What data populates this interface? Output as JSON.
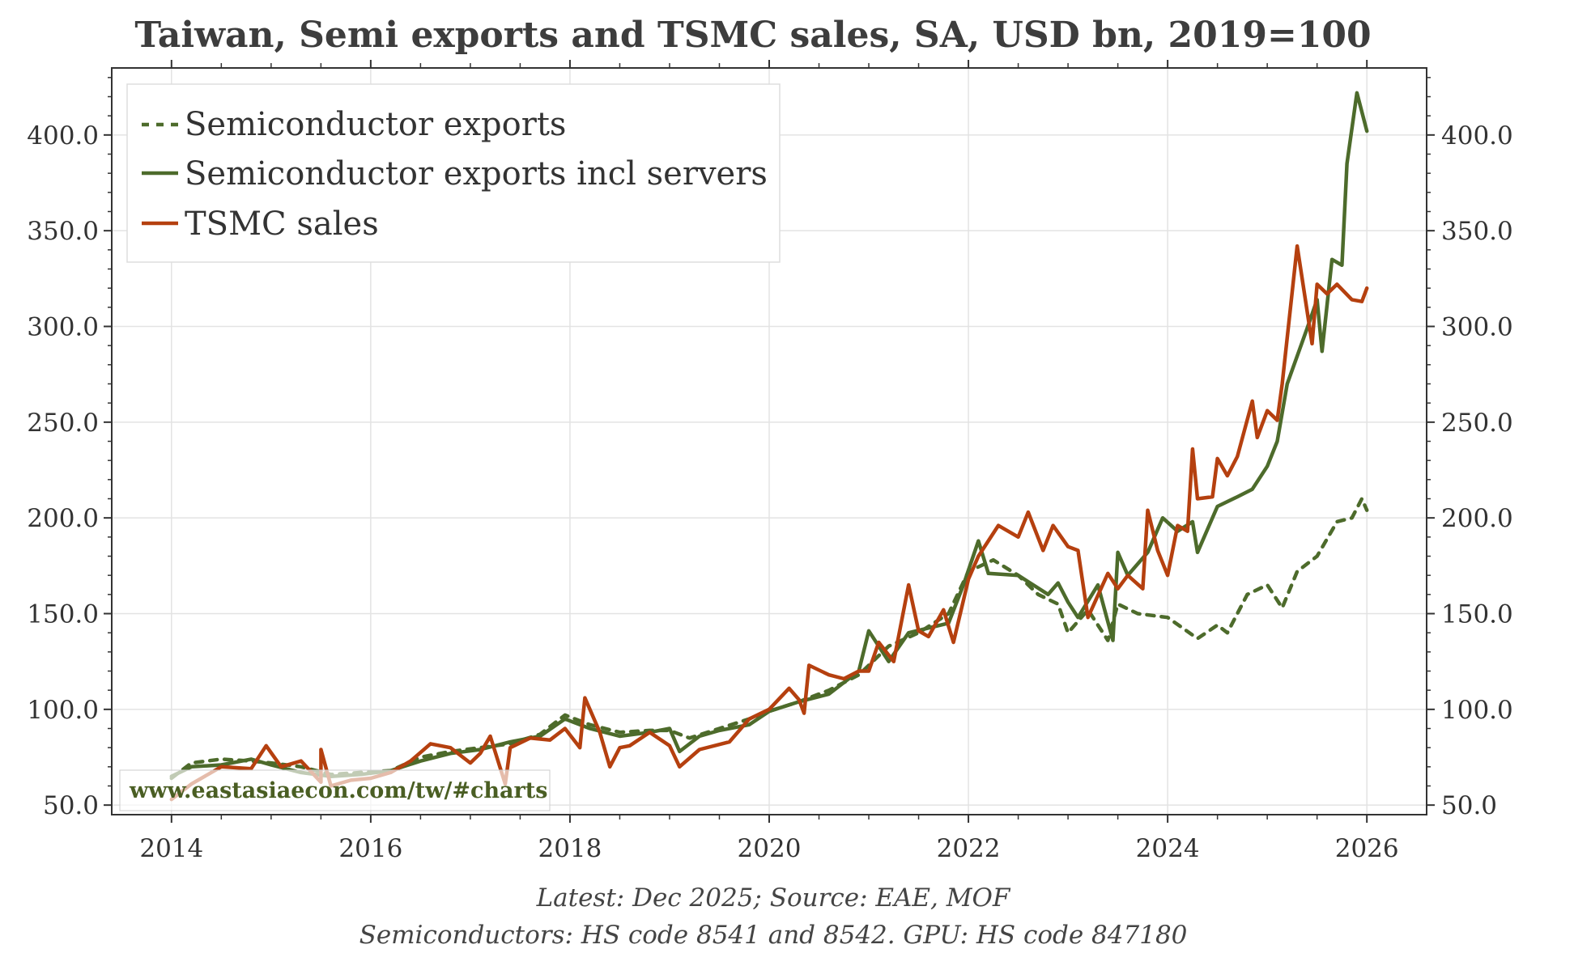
{
  "chart_data": {
    "type": "line",
    "title": "Taiwan, Semi exports and TSMC sales, SA, USD bn, 2019=100",
    "xlabel": "",
    "ylabel": "",
    "xlim": [
      2013.4,
      2026.6
    ],
    "ylim": [
      45,
      435
    ],
    "x_ticks": [
      "2014",
      "2016",
      "2018",
      "2020",
      "2022",
      "2024",
      "2026"
    ],
    "y_ticks": [
      "50.0",
      "100.0",
      "150.0",
      "200.0",
      "250.0",
      "300.0",
      "350.0",
      "400.0"
    ],
    "legend": {
      "position": "top-left",
      "entries": [
        "Semiconductor exports",
        "Semiconductor exports incl servers",
        "TSMC sales"
      ]
    },
    "footnotes": [
      "Latest: Dec 2025; Source: EAE, MOF",
      "Semiconductors: HS code 8541 and 8542. GPU: HS code 847180"
    ],
    "watermark": "www.eastasiaecon.com/tw/#charts",
    "colors": {
      "exports": "#4d6b2b",
      "exports_servers": "#4d6b2b",
      "tsmc": "#b5400f",
      "grid": "#e3e3e3",
      "axis": "#333333"
    },
    "series": [
      {
        "name": "Semiconductor exports",
        "style": "dashed",
        "points": [
          [
            2014.0,
            64
          ],
          [
            2014.2,
            72
          ],
          [
            2014.5,
            74
          ],
          [
            2014.8,
            73
          ],
          [
            2015.0,
            72
          ],
          [
            2015.3,
            70
          ],
          [
            2015.6,
            66
          ],
          [
            2015.9,
            67
          ],
          [
            2016.2,
            68
          ],
          [
            2016.5,
            75
          ],
          [
            2016.8,
            78
          ],
          [
            2017.1,
            80
          ],
          [
            2017.4,
            82
          ],
          [
            2017.7,
            87
          ],
          [
            2017.95,
            97
          ],
          [
            2018.2,
            92
          ],
          [
            2018.5,
            88
          ],
          [
            2018.8,
            89
          ],
          [
            2019.0,
            89
          ],
          [
            2019.2,
            85
          ],
          [
            2019.5,
            90
          ],
          [
            2019.8,
            95
          ],
          [
            2020.0,
            99
          ],
          [
            2020.3,
            104
          ],
          [
            2020.6,
            110
          ],
          [
            2020.9,
            118
          ],
          [
            2021.0,
            123
          ],
          [
            2021.2,
            133
          ],
          [
            2021.5,
            140
          ],
          [
            2021.8,
            150
          ],
          [
            2022.0,
            172
          ],
          [
            2022.25,
            178
          ],
          [
            2022.5,
            170
          ],
          [
            2022.7,
            160
          ],
          [
            2022.9,
            155
          ],
          [
            2023.0,
            140
          ],
          [
            2023.2,
            152
          ],
          [
            2023.4,
            136
          ],
          [
            2023.5,
            155
          ],
          [
            2023.7,
            150
          ],
          [
            2024.0,
            148
          ],
          [
            2024.3,
            137
          ],
          [
            2024.5,
            144
          ],
          [
            2024.6,
            140
          ],
          [
            2024.8,
            160
          ],
          [
            2025.0,
            165
          ],
          [
            2025.15,
            153
          ],
          [
            2025.3,
            172
          ],
          [
            2025.5,
            180
          ],
          [
            2025.7,
            198
          ],
          [
            2025.85,
            200
          ],
          [
            2025.95,
            210
          ],
          [
            2026.0,
            204
          ]
        ]
      },
      {
        "name": "Semiconductor exports incl servers",
        "style": "solid",
        "points": [
          [
            2014.0,
            65
          ],
          [
            2014.2,
            70
          ],
          [
            2014.5,
            71
          ],
          [
            2014.8,
            74
          ],
          [
            2015.0,
            71
          ],
          [
            2015.3,
            67
          ],
          [
            2015.6,
            65
          ],
          [
            2015.9,
            66
          ],
          [
            2016.2,
            68
          ],
          [
            2016.5,
            73
          ],
          [
            2016.8,
            77
          ],
          [
            2017.1,
            79
          ],
          [
            2017.4,
            83
          ],
          [
            2017.7,
            86
          ],
          [
            2017.95,
            95
          ],
          [
            2018.2,
            90
          ],
          [
            2018.5,
            86
          ],
          [
            2018.8,
            88
          ],
          [
            2019.0,
            90
          ],
          [
            2019.1,
            78
          ],
          [
            2019.3,
            86
          ],
          [
            2019.5,
            89
          ],
          [
            2019.8,
            92
          ],
          [
            2020.0,
            99
          ],
          [
            2020.3,
            104
          ],
          [
            2020.6,
            108
          ],
          [
            2020.9,
            120
          ],
          [
            2021.0,
            141
          ],
          [
            2021.2,
            125
          ],
          [
            2021.4,
            140
          ],
          [
            2021.8,
            145
          ],
          [
            2021.95,
            165
          ],
          [
            2022.1,
            188
          ],
          [
            2022.2,
            171
          ],
          [
            2022.5,
            170
          ],
          [
            2022.8,
            160
          ],
          [
            2022.9,
            166
          ],
          [
            2023.0,
            156
          ],
          [
            2023.1,
            148
          ],
          [
            2023.3,
            165
          ],
          [
            2023.45,
            136
          ],
          [
            2023.5,
            182
          ],
          [
            2023.6,
            170
          ],
          [
            2023.8,
            182
          ],
          [
            2023.95,
            200
          ],
          [
            2024.1,
            193
          ],
          [
            2024.25,
            198
          ],
          [
            2024.3,
            182
          ],
          [
            2024.5,
            206
          ],
          [
            2024.7,
            211
          ],
          [
            2024.85,
            215
          ],
          [
            2025.0,
            227
          ],
          [
            2025.1,
            240
          ],
          [
            2025.2,
            270
          ],
          [
            2025.4,
            299
          ],
          [
            2025.5,
            314
          ],
          [
            2025.55,
            287
          ],
          [
            2025.65,
            335
          ],
          [
            2025.75,
            332
          ],
          [
            2025.8,
            385
          ],
          [
            2025.9,
            422
          ],
          [
            2026.0,
            402
          ]
        ]
      },
      {
        "name": "TSMC sales",
        "style": "solid",
        "points": [
          [
            2014.0,
            53
          ],
          [
            2014.2,
            61
          ],
          [
            2014.5,
            70
          ],
          [
            2014.8,
            69
          ],
          [
            2014.95,
            81
          ],
          [
            2015.1,
            70
          ],
          [
            2015.3,
            73
          ],
          [
            2015.5,
            62
          ],
          [
            2015.5,
            79
          ],
          [
            2015.6,
            60
          ],
          [
            2015.8,
            63
          ],
          [
            2016.0,
            64
          ],
          [
            2016.2,
            67
          ],
          [
            2016.4,
            73
          ],
          [
            2016.6,
            82
          ],
          [
            2016.8,
            80
          ],
          [
            2017.0,
            72
          ],
          [
            2017.1,
            77
          ],
          [
            2017.2,
            86
          ],
          [
            2017.35,
            61
          ],
          [
            2017.4,
            80
          ],
          [
            2017.6,
            85
          ],
          [
            2017.8,
            84
          ],
          [
            2017.95,
            90
          ],
          [
            2018.1,
            80
          ],
          [
            2018.15,
            106
          ],
          [
            2018.3,
            88
          ],
          [
            2018.4,
            70
          ],
          [
            2018.5,
            80
          ],
          [
            2018.6,
            81
          ],
          [
            2018.8,
            88
          ],
          [
            2019.0,
            81
          ],
          [
            2019.1,
            70
          ],
          [
            2019.3,
            79
          ],
          [
            2019.6,
            83
          ],
          [
            2019.8,
            95
          ],
          [
            2020.0,
            100
          ],
          [
            2020.2,
            111
          ],
          [
            2020.3,
            105
          ],
          [
            2020.35,
            98
          ],
          [
            2020.4,
            123
          ],
          [
            2020.6,
            118
          ],
          [
            2020.75,
            116
          ],
          [
            2020.9,
            120
          ],
          [
            2021.0,
            120
          ],
          [
            2021.1,
            135
          ],
          [
            2021.25,
            125
          ],
          [
            2021.4,
            165
          ],
          [
            2021.5,
            141
          ],
          [
            2021.6,
            138
          ],
          [
            2021.75,
            152
          ],
          [
            2021.85,
            135
          ],
          [
            2022.0,
            168
          ],
          [
            2022.1,
            180
          ],
          [
            2022.3,
            196
          ],
          [
            2022.5,
            190
          ],
          [
            2022.6,
            203
          ],
          [
            2022.75,
            183
          ],
          [
            2022.85,
            196
          ],
          [
            2023.0,
            185
          ],
          [
            2023.1,
            183
          ],
          [
            2023.2,
            148
          ],
          [
            2023.4,
            171
          ],
          [
            2023.5,
            163
          ],
          [
            2023.6,
            170
          ],
          [
            2023.75,
            163
          ],
          [
            2023.8,
            204
          ],
          [
            2023.9,
            183
          ],
          [
            2024.0,
            170
          ],
          [
            2024.1,
            196
          ],
          [
            2024.2,
            193
          ],
          [
            2024.25,
            236
          ],
          [
            2024.3,
            210
          ],
          [
            2024.45,
            211
          ],
          [
            2024.5,
            231
          ],
          [
            2024.6,
            222
          ],
          [
            2024.7,
            232
          ],
          [
            2024.85,
            261
          ],
          [
            2024.9,
            242
          ],
          [
            2025.0,
            256
          ],
          [
            2025.1,
            251
          ],
          [
            2025.15,
            270
          ],
          [
            2025.3,
            342
          ],
          [
            2025.4,
            308
          ],
          [
            2025.45,
            291
          ],
          [
            2025.5,
            322
          ],
          [
            2025.6,
            317
          ],
          [
            2025.7,
            322
          ],
          [
            2025.85,
            314
          ],
          [
            2025.95,
            313
          ],
          [
            2026.0,
            320
          ]
        ]
      }
    ]
  }
}
